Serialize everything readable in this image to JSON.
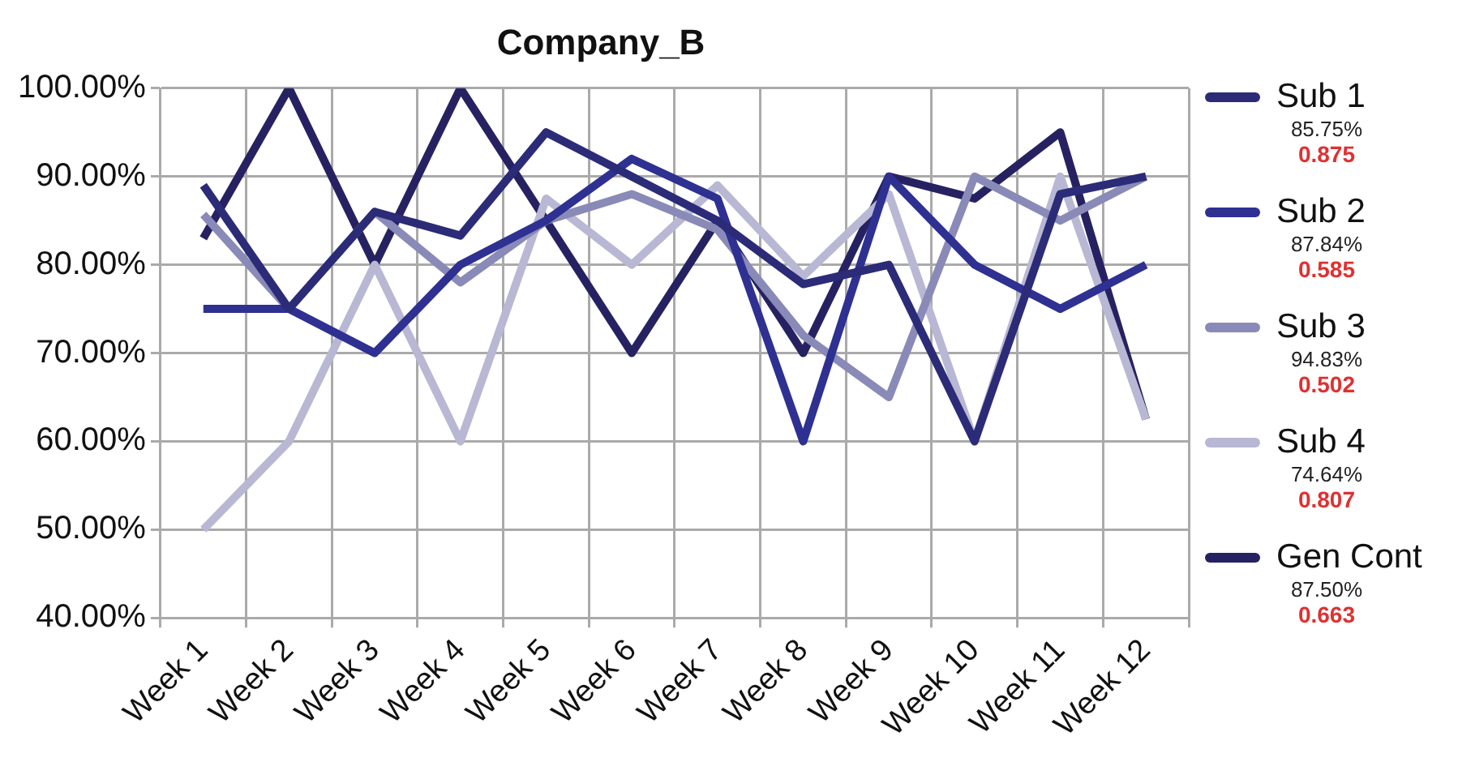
{
  "chart_data": {
    "type": "line",
    "title": "Company_B",
    "categories": [
      "Week 1",
      "Week 2",
      "Week 3",
      "Week 4",
      "Week 5",
      "Week 6",
      "Week 7",
      "Week 8",
      "Week 9",
      "Week 10",
      "Week 11",
      "Week 12"
    ],
    "series": [
      {
        "name": "Sub 1",
        "color": "#2b2b78",
        "values": [
          89,
          75,
          86,
          83.3,
          95,
          90,
          85,
          77.8,
          80,
          60,
          88,
          90
        ]
      },
      {
        "name": "Sub 2",
        "color": "#2e3092",
        "values": [
          75,
          75,
          70,
          80,
          85,
          92,
          87.5,
          60,
          90,
          80,
          75,
          80
        ]
      },
      {
        "name": "Sub 3",
        "color": "#8a8ab8",
        "values": [
          85.7,
          75,
          86,
          78,
          85,
          88,
          84,
          72,
          65,
          90,
          85,
          90
        ]
      },
      {
        "name": "Sub 4",
        "color": "#b8b8d4",
        "values": [
          50,
          60,
          80,
          60,
          87.5,
          80,
          89,
          78.7,
          88,
          60,
          90,
          62.5
        ]
      },
      {
        "name": "Gen Cont",
        "color": "#262262",
        "values": [
          83,
          100,
          80,
          100,
          85,
          70,
          85,
          70,
          90,
          87.5,
          95,
          62.5
        ]
      }
    ],
    "ylim": [
      40,
      100
    ],
    "yticks": [
      {
        "value": 40,
        "label": "40.00%"
      },
      {
        "value": 50,
        "label": "50.00%"
      },
      {
        "value": 60,
        "label": "60.00%"
      },
      {
        "value": 70,
        "label": "70.00%"
      },
      {
        "value": 80,
        "label": "80.00%"
      },
      {
        "value": 90,
        "label": "90.00%"
      },
      {
        "value": 100,
        "label": "100.00%"
      }
    ],
    "grid": true,
    "legend": "right",
    "marker": "none",
    "line_style": "solid",
    "annotations": [
      "85.75%",
      "0.875",
      "87.84%",
      "0.585",
      "94.83%",
      "0.502",
      "74.64%",
      "0.807",
      "87.50%",
      "0.663"
    ]
  }
}
